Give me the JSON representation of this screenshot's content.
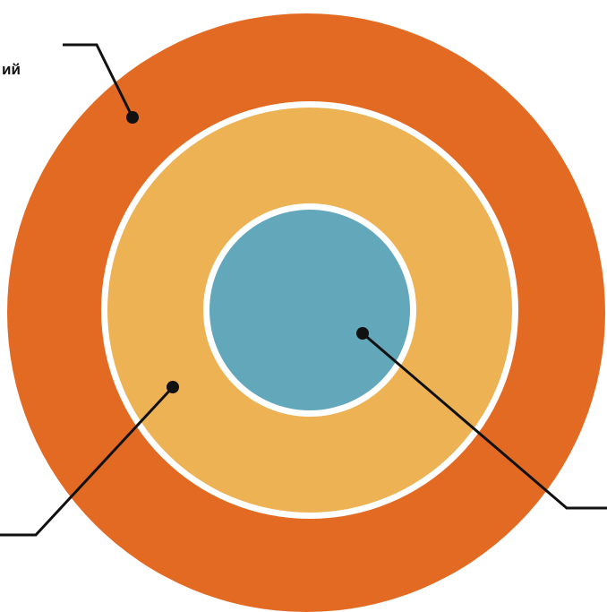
{
  "diagram": {
    "rings": [
      {
        "name": "outer",
        "color": "#E36A22"
      },
      {
        "name": "middle",
        "color": "#EDB254"
      },
      {
        "name": "inner",
        "color": "#62A7BA"
      }
    ],
    "separator_color": "#FFFFFF",
    "leader_color": "#111111",
    "labels": {
      "outer": "ий"
    }
  }
}
